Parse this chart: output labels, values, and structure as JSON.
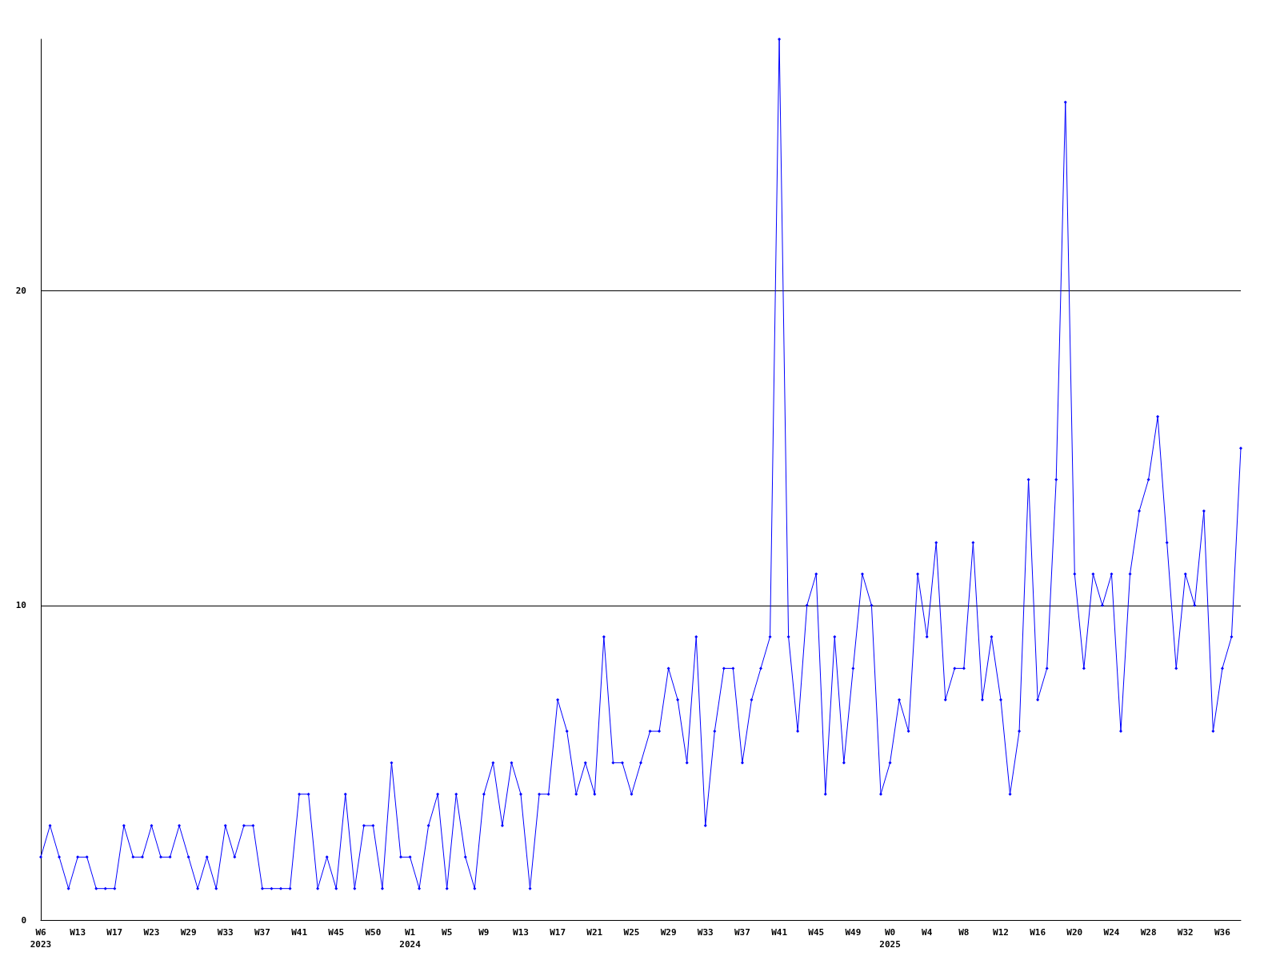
{
  "chart_data": {
    "type": "line",
    "categories": [
      "W6\n2023",
      null,
      null,
      null,
      "W13",
      null,
      null,
      null,
      "W17",
      null,
      null,
      null,
      "W23",
      null,
      null,
      null,
      "W29",
      null,
      null,
      null,
      "W33",
      null,
      null,
      null,
      "W37",
      null,
      null,
      null,
      "W41",
      null,
      null,
      null,
      "W45",
      null,
      null,
      null,
      "W50",
      null,
      null,
      null,
      "W1\n2024",
      null,
      null,
      null,
      "W5",
      null,
      null,
      null,
      "W9",
      null,
      null,
      null,
      "W13",
      null,
      null,
      null,
      "W17",
      null,
      null,
      null,
      "W21",
      null,
      null,
      null,
      "W25",
      null,
      null,
      null,
      "W29",
      null,
      null,
      null,
      "W33",
      null,
      null,
      null,
      "W37",
      null,
      null,
      null,
      "W41",
      null,
      null,
      null,
      "W45",
      null,
      null,
      null,
      "W49",
      null,
      null,
      null,
      "W0\n2025",
      null,
      null,
      null,
      "W4",
      null,
      null,
      null,
      "W8",
      null,
      null,
      null,
      "W12",
      null,
      null,
      null,
      "W16",
      null,
      null,
      null,
      "W20",
      null,
      null,
      null,
      "W24",
      null,
      null,
      null,
      "W28",
      null,
      null,
      null,
      "W32",
      null,
      null,
      null,
      "W36",
      null,
      null
    ],
    "series": [
      {
        "color": "#0000ff",
        "values": [
          2,
          3,
          2,
          1,
          2,
          2,
          1,
          1,
          1,
          3,
          2,
          2,
          3,
          2,
          2,
          3,
          2,
          1,
          2,
          1,
          3,
          2,
          3,
          3,
          1,
          1,
          1,
          1,
          4,
          4,
          1,
          2,
          1,
          4,
          1,
          3,
          3,
          1,
          5,
          2,
          2,
          1,
          3,
          4,
          1,
          4,
          2,
          1,
          4,
          5,
          3,
          5,
          4,
          1,
          4,
          4,
          7,
          6,
          4,
          5,
          4,
          9,
          5,
          5,
          4,
          5,
          6,
          6,
          8,
          7,
          5,
          9,
          3,
          6,
          8,
          8,
          5,
          7,
          8,
          9,
          28,
          9,
          6,
          10,
          11,
          4,
          9,
          5,
          8,
          11,
          10,
          4,
          5,
          7,
          6,
          11,
          9,
          12,
          7,
          8,
          8,
          12,
          7,
          9,
          7,
          4,
          6,
          14,
          7,
          8,
          14,
          26,
          11,
          8,
          11,
          10,
          11,
          6,
          11,
          13,
          14,
          16,
          12,
          8,
          11,
          10,
          13,
          6,
          8,
          9,
          15
        ]
      }
    ],
    "ylim": [
      0,
      28
    ],
    "yticks": [
      0,
      10,
      20
    ],
    "grid": "y",
    "marker": "diamond",
    "line_style": "solid"
  }
}
